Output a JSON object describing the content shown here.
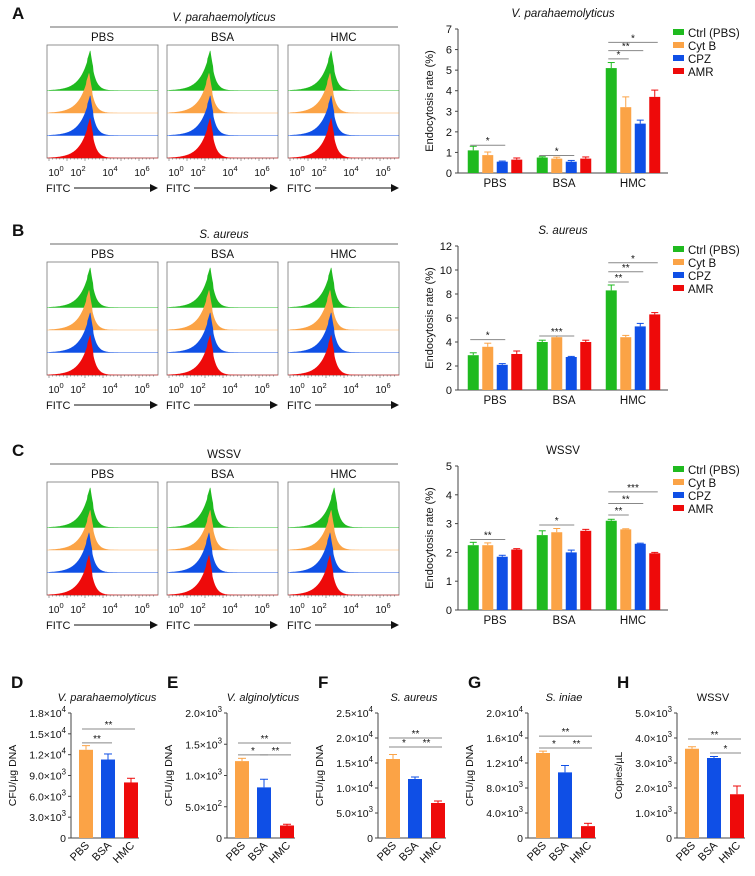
{
  "colors": {
    "ctrl": "#1fba1f",
    "cytb": "#fba346",
    "cpz": "#0f4fe6",
    "amr": "#ee0a0a",
    "axis": "#444444",
    "sigline": "#888888"
  },
  "flow_rows": [
    {
      "letter": "A",
      "title": "V. parahaemolyticus",
      "italic": true,
      "panels": [
        "PBS",
        "BSA",
        "HMC"
      ]
    },
    {
      "letter": "B",
      "title": "S. aureus",
      "italic": true,
      "panels": [
        "PBS",
        "BSA",
        "HMC"
      ]
    },
    {
      "letter": "C",
      "title": "WSSV",
      "italic": false,
      "panels": [
        "PBS",
        "BSA",
        "HMC"
      ]
    }
  ],
  "flow_axis": {
    "ticks": [
      "10^0",
      "10^2",
      "10^4",
      "10^6"
    ],
    "xlabel": "FITC"
  },
  "chart_data": [
    {
      "type": "bar",
      "title": "V. parahaemolyticus",
      "italic": true,
      "ylabel": "Endocytosis rate (%)",
      "ylim": [
        0,
        7
      ],
      "yticks": [
        "0",
        "1",
        "2",
        "3",
        "4",
        "5",
        "6",
        "7"
      ],
      "categories": [
        "PBS",
        "BSA",
        "HMC"
      ],
      "legend": [
        "Ctrl (PBS)",
        "Cyt B",
        "CPZ",
        "AMR"
      ],
      "legend_position": "right",
      "series": [
        {
          "name": "Ctrl (PBS)",
          "values": [
            1.1,
            0.75,
            5.1
          ],
          "errors": [
            0.2,
            0.04,
            0.27
          ]
        },
        {
          "name": "Cyt B",
          "values": [
            0.87,
            0.7,
            3.2
          ],
          "errors": [
            0.15,
            0.07,
            0.5
          ]
        },
        {
          "name": "CPZ",
          "values": [
            0.55,
            0.55,
            2.4
          ],
          "errors": [
            0.03,
            0.06,
            0.17
          ]
        },
        {
          "name": "AMR",
          "values": [
            0.65,
            0.7,
            3.7
          ],
          "errors": [
            0.08,
            0.08,
            0.33
          ]
        }
      ],
      "significance": [
        {
          "category": 0,
          "from": 0,
          "to": 2,
          "level": 1.35,
          "label": "*"
        },
        {
          "category": 1,
          "from": 0,
          "to": 2,
          "level": 0.85,
          "label": "*"
        },
        {
          "category": 2,
          "from": 0,
          "to": 1,
          "level": 5.55,
          "label": "*"
        },
        {
          "category": 2,
          "from": 0,
          "to": 2,
          "level": 5.95,
          "label": "**"
        },
        {
          "category": 2,
          "from": 0,
          "to": 3,
          "level": 6.35,
          "label": "*"
        }
      ]
    },
    {
      "type": "bar",
      "title": "S. aureus",
      "italic": true,
      "ylabel": "Endocytosis rate (%)",
      "ylim": [
        0,
        12
      ],
      "yticks": [
        "0",
        "2",
        "4",
        "6",
        "8",
        "10",
        "12"
      ],
      "categories": [
        "PBS",
        "BSA",
        "HMC"
      ],
      "legend": [
        "Ctrl (PBS)",
        "Cyt B",
        "CPZ",
        "AMR"
      ],
      "legend_position": "right",
      "series": [
        {
          "name": "Ctrl (PBS)",
          "values": [
            2.9,
            4.0,
            8.3
          ],
          "errors": [
            0.2,
            0.15,
            0.45
          ]
        },
        {
          "name": "Cyt B",
          "values": [
            3.6,
            4.4,
            4.4
          ],
          "errors": [
            0.3,
            0.1,
            0.15
          ]
        },
        {
          "name": "CPZ",
          "values": [
            2.1,
            2.75,
            5.3
          ],
          "errors": [
            0.1,
            0.05,
            0.25
          ]
        },
        {
          "name": "AMR",
          "values": [
            3.0,
            4.0,
            6.3
          ],
          "errors": [
            0.25,
            0.15,
            0.15
          ]
        }
      ],
      "significance": [
        {
          "category": 0,
          "from": 0,
          "to": 2,
          "level": 4.2,
          "label": "*"
        },
        {
          "category": 1,
          "from": 0,
          "to": 2,
          "level": 4.5,
          "label": "***"
        },
        {
          "category": 2,
          "from": 0,
          "to": 1,
          "level": 9.0,
          "label": "**"
        },
        {
          "category": 2,
          "from": 0,
          "to": 2,
          "level": 9.85,
          "label": "**"
        },
        {
          "category": 2,
          "from": 0,
          "to": 3,
          "level": 10.6,
          "label": "*"
        }
      ]
    },
    {
      "type": "bar",
      "title": "WSSV",
      "italic": false,
      "ylabel": "Endocytosis rate (%)",
      "ylim": [
        0,
        5
      ],
      "yticks": [
        "0",
        "1",
        "2",
        "3",
        "4",
        "5"
      ],
      "categories": [
        "PBS",
        "BSA",
        "HMC"
      ],
      "legend": [
        "Ctrl (PBS)",
        "Cyt B",
        "CPZ",
        "AMR"
      ],
      "legend_position": "right",
      "series": [
        {
          "name": "Ctrl (PBS)",
          "values": [
            2.25,
            2.6,
            3.1
          ],
          "errors": [
            0.1,
            0.15,
            0.05
          ]
        },
        {
          "name": "Cyt B",
          "values": [
            2.25,
            2.7,
            2.8
          ],
          "errors": [
            0.08,
            0.13,
            0.02
          ]
        },
        {
          "name": "CPZ",
          "values": [
            1.85,
            2.0,
            2.3
          ],
          "errors": [
            0.05,
            0.08,
            0.02
          ]
        },
        {
          "name": "AMR",
          "values": [
            2.1,
            2.75,
            1.97
          ],
          "errors": [
            0.03,
            0.05,
            0.03
          ]
        }
      ],
      "significance": [
        {
          "category": 0,
          "from": 0,
          "to": 2,
          "level": 2.45,
          "label": "**"
        },
        {
          "category": 1,
          "from": 0,
          "to": 2,
          "level": 2.95,
          "label": "*"
        },
        {
          "category": 2,
          "from": 0,
          "to": 1,
          "level": 3.3,
          "label": "**"
        },
        {
          "category": 2,
          "from": 0,
          "to": 2,
          "level": 3.7,
          "label": "**"
        },
        {
          "category": 2,
          "from": 0,
          "to": 3,
          "level": 4.1,
          "label": "***"
        }
      ]
    },
    {
      "type": "bar",
      "letter": "D",
      "title": "V. parahaemolyticus",
      "italic": true,
      "ylabel": "CFU/µg DNA",
      "ylim": [
        0,
        18000
      ],
      "yticks": [
        "0",
        "3.0×10^3",
        "6.0×10^3",
        "9.0×10^3",
        "1.2×10^4",
        "1.5×10^4",
        "1.8×10^4"
      ],
      "categories": [
        "PBS",
        "BSA",
        "HMC"
      ],
      "values": [
        12700,
        11300,
        8000
      ],
      "errors": [
        600,
        800,
        600
      ],
      "significance": [
        {
          "from": 0,
          "to": 1,
          "level": 13700,
          "label": "**"
        },
        {
          "from": 0,
          "to": 2,
          "level": 15700,
          "label": "**"
        }
      ]
    },
    {
      "type": "bar",
      "letter": "E",
      "title": "V. alginolyticus",
      "italic": true,
      "ylabel": "CFU/µg DNA",
      "ylim": [
        0,
        2000
      ],
      "yticks": [
        "0",
        "5.0×10^2",
        "1.0×10^3",
        "1.5×10^3",
        "2.0×10^3"
      ],
      "categories": [
        "PBS",
        "BSA",
        "HMC"
      ],
      "values": [
        1230,
        810,
        200
      ],
      "errors": [
        45,
        130,
        20
      ],
      "significance": [
        {
          "from": 0,
          "to": 1,
          "level": 1330,
          "label": "*"
        },
        {
          "from": 1,
          "to": 2,
          "level": 1330,
          "label": "**"
        },
        {
          "from": 0,
          "to": 2,
          "level": 1520,
          "label": "**"
        }
      ]
    },
    {
      "type": "bar",
      "letter": "F",
      "title": "S. aureus",
      "italic": true,
      "ylabel": "CFU/µg DNA",
      "ylim": [
        0,
        25000
      ],
      "yticks": [
        "0",
        "5.0×10^3",
        "1.0×10^4",
        "1.5×10^4",
        "2.0×10^4",
        "2.5×10^4"
      ],
      "categories": [
        "PBS",
        "BSA",
        "HMC"
      ],
      "values": [
        15800,
        11800,
        7000
      ],
      "errors": [
        900,
        400,
        400
      ],
      "significance": [
        {
          "from": 0,
          "to": 1,
          "level": 18200,
          "label": "*"
        },
        {
          "from": 1,
          "to": 2,
          "level": 18200,
          "label": "**"
        },
        {
          "from": 0,
          "to": 2,
          "level": 20000,
          "label": "**"
        }
      ]
    },
    {
      "type": "bar",
      "letter": "G",
      "title": "S. iniae",
      "italic": true,
      "ylabel": "CFU/µg DNA",
      "ylim": [
        0,
        20000
      ],
      "yticks": [
        "0",
        "4.0×10^3",
        "8.0×10^3",
        "1.2×10^4",
        "1.6×10^4",
        "2.0×10^4"
      ],
      "categories": [
        "PBS",
        "BSA",
        "HMC"
      ],
      "values": [
        13600,
        10500,
        1900
      ],
      "errors": [
        300,
        1100,
        450
      ],
      "significance": [
        {
          "from": 0,
          "to": 1,
          "level": 14400,
          "label": "*"
        },
        {
          "from": 1,
          "to": 2,
          "level": 14400,
          "label": "**"
        },
        {
          "from": 0,
          "to": 2,
          "level": 16300,
          "label": "**"
        }
      ]
    },
    {
      "type": "bar",
      "letter": "H",
      "title": "WSSV",
      "italic": false,
      "ylabel": "Copies/µL",
      "ylim": [
        0,
        5000
      ],
      "yticks": [
        "0",
        "1.0×10^3",
        "2.0×10^3",
        "3.0×10^3",
        "4.0×10^3",
        "5.0×10^3"
      ],
      "categories": [
        "PBS",
        "BSA",
        "HMC"
      ],
      "values": [
        3570,
        3200,
        1750
      ],
      "errors": [
        80,
        60,
        330
      ],
      "significance": [
        {
          "from": 0,
          "to": 2,
          "level": 3960,
          "label": "**"
        },
        {
          "from": 1,
          "to": 2,
          "level": 3400,
          "label": "*"
        }
      ]
    }
  ]
}
